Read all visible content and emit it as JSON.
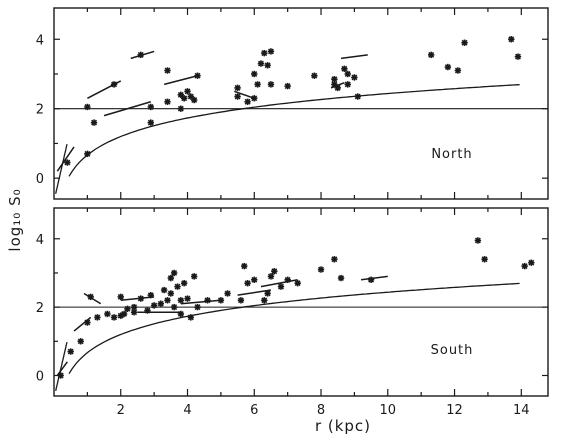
{
  "chart_data": {
    "type": "scatter",
    "xlabel": "r (kpc)",
    "ylabel": "log₁₀ S₀",
    "xlim": [
      0,
      14.8
    ],
    "ylim": [
      -0.6,
      4.9
    ],
    "x_ticks": [
      2,
      4,
      6,
      8,
      10,
      12,
      14
    ],
    "y_ticks": [
      0,
      2,
      4
    ],
    "reference_line_y": 2,
    "grid": false,
    "legend": "none",
    "panels": [
      {
        "label": "North",
        "points": [
          [
            0.4,
            0.45
          ],
          [
            1.0,
            2.05
          ],
          [
            1.0,
            0.7
          ],
          [
            1.2,
            1.6
          ],
          [
            1.8,
            2.7
          ],
          [
            2.6,
            3.55
          ],
          [
            2.9,
            1.6
          ],
          [
            2.9,
            2.05
          ],
          [
            3.4,
            3.1
          ],
          [
            3.4,
            2.2
          ],
          [
            3.8,
            2.4
          ],
          [
            3.8,
            2.0
          ],
          [
            3.9,
            2.3
          ],
          [
            4.0,
            2.5
          ],
          [
            4.1,
            2.35
          ],
          [
            4.2,
            2.25
          ],
          [
            4.3,
            2.95
          ],
          [
            5.5,
            2.6
          ],
          [
            5.5,
            2.35
          ],
          [
            5.8,
            2.2
          ],
          [
            6.0,
            2.3
          ],
          [
            6.0,
            3.0
          ],
          [
            6.1,
            2.7
          ],
          [
            6.2,
            3.3
          ],
          [
            6.3,
            3.6
          ],
          [
            6.4,
            3.25
          ],
          [
            6.5,
            3.65
          ],
          [
            6.5,
            2.7
          ],
          [
            7.0,
            2.65
          ],
          [
            7.8,
            2.95
          ],
          [
            8.4,
            2.85
          ],
          [
            8.4,
            2.7
          ],
          [
            8.5,
            2.6
          ],
          [
            8.7,
            3.15
          ],
          [
            8.8,
            3.0
          ],
          [
            8.8,
            2.7
          ],
          [
            9.0,
            2.9
          ],
          [
            9.1,
            2.35
          ],
          [
            11.3,
            3.55
          ],
          [
            11.8,
            3.2
          ],
          [
            12.1,
            3.1
          ],
          [
            12.3,
            3.9
          ],
          [
            13.7,
            4.0
          ],
          [
            13.9,
            3.5
          ]
        ],
        "segments": [
          [
            [
              0.1,
              0.2
            ],
            [
              0.6,
              0.9
            ]
          ],
          [
            [
              1.0,
              2.3
            ],
            [
              2.0,
              2.8
            ]
          ],
          [
            [
              2.3,
              3.45
            ],
            [
              3.0,
              3.65
            ]
          ],
          [
            [
              1.5,
              1.8
            ],
            [
              2.9,
              2.2
            ]
          ],
          [
            [
              3.3,
              2.7
            ],
            [
              4.3,
              2.95
            ]
          ],
          [
            [
              5.4,
              2.5
            ],
            [
              6.0,
              2.3
            ]
          ],
          [
            [
              8.6,
              3.45
            ],
            [
              9.4,
              3.55
            ]
          ],
          [
            [
              8.3,
              2.6
            ],
            [
              8.7,
              2.75
            ]
          ]
        ]
      },
      {
        "label": "South",
        "points": [
          [
            0.2,
            0.0
          ],
          [
            0.5,
            0.7
          ],
          [
            0.8,
            1.0
          ],
          [
            1.0,
            1.55
          ],
          [
            1.1,
            2.3
          ],
          [
            1.3,
            1.7
          ],
          [
            1.6,
            1.8
          ],
          [
            1.8,
            1.7
          ],
          [
            2.0,
            1.75
          ],
          [
            2.0,
            2.3
          ],
          [
            2.1,
            1.8
          ],
          [
            2.2,
            1.95
          ],
          [
            2.4,
            1.85
          ],
          [
            2.4,
            2.0
          ],
          [
            2.6,
            2.25
          ],
          [
            2.8,
            1.9
          ],
          [
            2.9,
            2.35
          ],
          [
            3.0,
            2.05
          ],
          [
            3.2,
            2.1
          ],
          [
            3.3,
            2.5
          ],
          [
            3.4,
            2.2
          ],
          [
            3.5,
            2.85
          ],
          [
            3.5,
            2.4
          ],
          [
            3.6,
            2.0
          ],
          [
            3.6,
            3.0
          ],
          [
            3.7,
            2.6
          ],
          [
            3.8,
            2.2
          ],
          [
            3.8,
            1.8
          ],
          [
            3.9,
            2.7
          ],
          [
            4.0,
            2.25
          ],
          [
            4.1,
            1.7
          ],
          [
            4.2,
            2.9
          ],
          [
            4.3,
            2.0
          ],
          [
            4.6,
            2.2
          ],
          [
            5.0,
            2.2
          ],
          [
            5.2,
            2.4
          ],
          [
            5.6,
            2.2
          ],
          [
            5.7,
            3.2
          ],
          [
            5.8,
            2.7
          ],
          [
            6.0,
            2.8
          ],
          [
            6.3,
            2.2
          ],
          [
            6.4,
            2.4
          ],
          [
            6.5,
            2.9
          ],
          [
            6.6,
            3.05
          ],
          [
            6.8,
            2.6
          ],
          [
            7.0,
            2.8
          ],
          [
            7.3,
            2.7
          ],
          [
            8.0,
            3.1
          ],
          [
            8.4,
            3.4
          ],
          [
            8.6,
            2.85
          ],
          [
            9.5,
            2.8
          ],
          [
            12.7,
            3.95
          ],
          [
            12.9,
            3.4
          ],
          [
            14.1,
            3.2
          ],
          [
            14.3,
            3.3
          ]
        ],
        "segments": [
          [
            [
              0.1,
              0.0
            ],
            [
              0.4,
              0.4
            ]
          ],
          [
            [
              0.6,
              1.3
            ],
            [
              1.1,
              1.7
            ]
          ],
          [
            [
              0.9,
              2.4
            ],
            [
              1.4,
              2.1
            ]
          ],
          [
            [
              2.5,
              1.85
            ],
            [
              3.8,
              1.85
            ]
          ],
          [
            [
              2.0,
              2.2
            ],
            [
              3.0,
              2.3
            ]
          ],
          [
            [
              3.8,
              2.1
            ],
            [
              5.0,
              2.2
            ]
          ],
          [
            [
              5.5,
              2.35
            ],
            [
              6.5,
              2.5
            ]
          ],
          [
            [
              6.2,
              2.6
            ],
            [
              7.3,
              2.8
            ]
          ],
          [
            [
              9.2,
              2.8
            ],
            [
              10.0,
              2.9
            ]
          ]
        ]
      }
    ]
  }
}
